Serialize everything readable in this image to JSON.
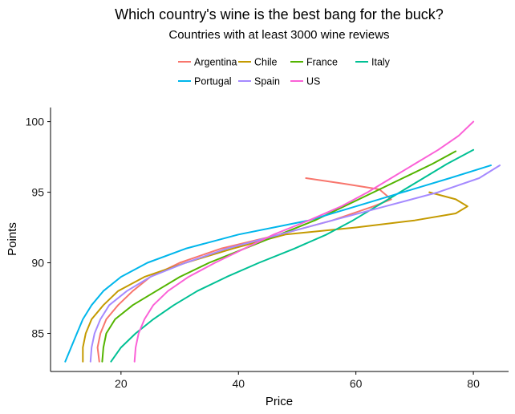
{
  "chart_data": {
    "type": "line",
    "title": "Which country's wine is the best bang for the buck?",
    "subtitle": "Countries with at least 3000 wine reviews",
    "xlabel": "Price",
    "ylabel": "Points",
    "xlim": [
      8,
      86
    ],
    "ylim": [
      82.3,
      101
    ],
    "xticks": [
      20,
      40,
      60,
      80
    ],
    "yticks": [
      85,
      90,
      95,
      100
    ],
    "grid": false,
    "legend_position": "top",
    "series": [
      {
        "name": "Argentina",
        "color": "#F8766D",
        "points": [
          [
            16.3,
            83
          ],
          [
            16,
            84
          ],
          [
            16.5,
            85
          ],
          [
            17.5,
            86
          ],
          [
            19.5,
            87
          ],
          [
            22,
            88
          ],
          [
            25,
            89
          ],
          [
            30,
            90
          ],
          [
            37,
            91
          ],
          [
            47,
            92
          ],
          [
            56,
            93
          ],
          [
            63,
            94
          ],
          [
            66,
            94.5
          ],
          [
            64,
            95.2
          ],
          [
            58,
            95.6
          ],
          [
            51.5,
            96
          ]
        ]
      },
      {
        "name": "Chile",
        "color": "#C49A00",
        "points": [
          [
            13.5,
            83
          ],
          [
            13.5,
            84
          ],
          [
            14,
            85
          ],
          [
            15,
            86
          ],
          [
            17,
            87
          ],
          [
            19.5,
            88
          ],
          [
            24,
            89
          ],
          [
            31,
            90
          ],
          [
            39,
            91
          ],
          [
            48,
            92
          ],
          [
            60,
            92.5
          ],
          [
            70,
            93
          ],
          [
            77,
            93.5
          ],
          [
            79,
            94
          ],
          [
            77,
            94.5
          ],
          [
            72.5,
            95
          ]
        ]
      },
      {
        "name": "France",
        "color": "#53B400",
        "points": [
          [
            16.8,
            83
          ],
          [
            17,
            84
          ],
          [
            17.5,
            85
          ],
          [
            19,
            86
          ],
          [
            22,
            87
          ],
          [
            26,
            88
          ],
          [
            30,
            89
          ],
          [
            35,
            90
          ],
          [
            41,
            91
          ],
          [
            47,
            92
          ],
          [
            53,
            93
          ],
          [
            58,
            94
          ],
          [
            63,
            95
          ],
          [
            68,
            96
          ],
          [
            73,
            97
          ],
          [
            77,
            97.9
          ]
        ]
      },
      {
        "name": "Italy",
        "color": "#00C094",
        "points": [
          [
            18.3,
            83
          ],
          [
            20,
            84
          ],
          [
            22.5,
            85
          ],
          [
            25.5,
            86
          ],
          [
            29,
            87
          ],
          [
            33,
            88
          ],
          [
            38,
            89
          ],
          [
            43.5,
            90
          ],
          [
            49.5,
            91
          ],
          [
            55,
            92
          ],
          [
            59.5,
            93
          ],
          [
            63.5,
            94
          ],
          [
            67.5,
            95
          ],
          [
            71.5,
            96
          ],
          [
            75.5,
            97
          ],
          [
            80,
            98
          ]
        ]
      },
      {
        "name": "Portugal",
        "color": "#00B6EB",
        "points": [
          [
            10.5,
            83
          ],
          [
            11.5,
            84
          ],
          [
            12.5,
            85
          ],
          [
            13.5,
            86
          ],
          [
            15,
            87
          ],
          [
            17,
            88
          ],
          [
            20,
            89
          ],
          [
            24.5,
            90
          ],
          [
            31,
            91
          ],
          [
            40,
            92
          ],
          [
            52,
            93
          ],
          [
            60,
            94
          ],
          [
            68,
            95
          ],
          [
            76,
            96
          ],
          [
            83,
            96.9
          ]
        ]
      },
      {
        "name": "Spain",
        "color": "#A58AFF",
        "points": [
          [
            14.8,
            83
          ],
          [
            15,
            84
          ],
          [
            15.5,
            85
          ],
          [
            16.5,
            86
          ],
          [
            18,
            87
          ],
          [
            21,
            88
          ],
          [
            25,
            89
          ],
          [
            31,
            90
          ],
          [
            38,
            91
          ],
          [
            47,
            92
          ],
          [
            56,
            93
          ],
          [
            65,
            94
          ],
          [
            74,
            95
          ],
          [
            81,
            96
          ],
          [
            84.5,
            96.9
          ]
        ]
      },
      {
        "name": "US",
        "color": "#FB61D7",
        "points": [
          [
            22.3,
            83
          ],
          [
            22.5,
            84
          ],
          [
            23,
            85
          ],
          [
            24,
            86
          ],
          [
            25.5,
            87
          ],
          [
            28,
            88
          ],
          [
            31.5,
            89
          ],
          [
            36,
            90
          ],
          [
            41,
            91
          ],
          [
            46,
            92
          ],
          [
            52,
            93
          ],
          [
            57.5,
            94
          ],
          [
            62,
            95
          ],
          [
            66,
            96
          ],
          [
            70,
            97
          ],
          [
            74,
            98
          ],
          [
            77.5,
            99
          ],
          [
            80,
            100
          ]
        ]
      }
    ]
  }
}
